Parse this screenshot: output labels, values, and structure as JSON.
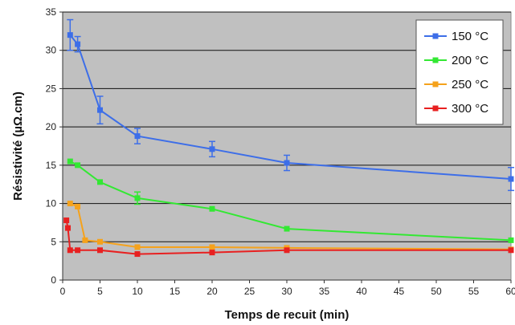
{
  "chart_data": {
    "type": "line",
    "xlabel": "Temps de recuit (min)",
    "ylabel": "Résistivité (µΩ.cm)",
    "xlim": [
      0,
      60
    ],
    "ylim": [
      0,
      35
    ],
    "xticks": [
      0,
      5,
      10,
      15,
      20,
      25,
      30,
      35,
      40,
      45,
      50,
      55,
      60
    ],
    "yticks": [
      0,
      5,
      10,
      15,
      20,
      25,
      30,
      35
    ],
    "grid": "horizontal",
    "legend_position": "top-right",
    "background": "#c0c0c0",
    "series": [
      {
        "name": "150 °C",
        "color": "#3d6ee8",
        "x": [
          1,
          2,
          5,
          10,
          20,
          30,
          60
        ],
        "y": [
          32,
          30.8,
          22.2,
          18.8,
          17.1,
          15.3,
          13.2
        ],
        "err": [
          2.0,
          1.0,
          1.8,
          1.0,
          1.0,
          1.0,
          1.5
        ]
      },
      {
        "name": "200 °C",
        "color": "#33e833",
        "x": [
          1,
          2,
          5,
          10,
          20,
          30,
          60
        ],
        "y": [
          15.5,
          15.0,
          12.8,
          10.7,
          9.3,
          6.7,
          5.2
        ],
        "err": [
          0,
          0,
          0,
          0.8,
          0,
          0,
          0
        ]
      },
      {
        "name": "250 °C",
        "color": "#f5a21c",
        "x": [
          1,
          2,
          3,
          5,
          10,
          20,
          30,
          60
        ],
        "y": [
          10.0,
          9.6,
          5.2,
          5.0,
          4.3,
          4.3,
          4.2,
          4.0
        ],
        "err": [
          0,
          0,
          0,
          0,
          0,
          0,
          0,
          0
        ]
      },
      {
        "name": "300 °C",
        "color": "#e82020",
        "x": [
          0.5,
          0.7,
          1,
          2,
          5,
          10,
          20,
          30,
          60
        ],
        "y": [
          7.8,
          6.8,
          3.9,
          3.9,
          3.9,
          3.4,
          3.6,
          3.9,
          3.9
        ],
        "err": [
          0,
          0,
          0,
          0,
          0,
          0,
          0,
          0,
          0
        ]
      }
    ]
  }
}
